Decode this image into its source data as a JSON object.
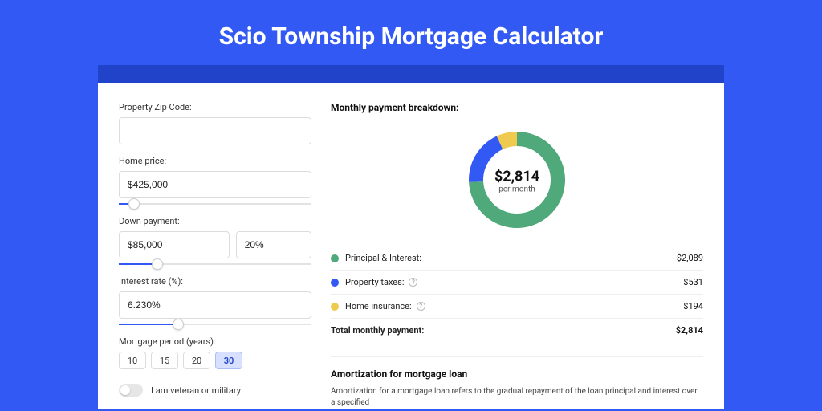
{
  "page": {
    "title": "Scio Township Mortgage Calculator",
    "background_color": "#3359f5",
    "header_band_color": "#2143c9"
  },
  "form": {
    "zip": {
      "label": "Property Zip Code:",
      "value": ""
    },
    "home_price": {
      "label": "Home price:",
      "value": "$425,000",
      "slider_percent": 8
    },
    "down_payment": {
      "label": "Down payment:",
      "amount": "$85,000",
      "percent": "20%",
      "slider_percent": 20
    },
    "interest_rate": {
      "label": "Interest rate (%):",
      "value": "6.230%",
      "slider_percent": 31
    },
    "mortgage_period": {
      "label": "Mortgage period (years):",
      "options": [
        "10",
        "15",
        "20",
        "30"
      ],
      "selected": "30"
    },
    "veteran": {
      "label": "I am veteran or military",
      "checked": false
    }
  },
  "breakdown": {
    "title": "Monthly payment breakdown:",
    "center_amount": "$2,814",
    "center_sub": "per month",
    "donut": {
      "segments": [
        {
          "name": "principal_interest",
          "value": 2089,
          "color": "#4fa97a"
        },
        {
          "name": "property_taxes",
          "value": 531,
          "color": "#3359f5"
        },
        {
          "name": "home_insurance",
          "value": 194,
          "color": "#f0c94f"
        }
      ],
      "radius_outer": 60,
      "radius_inner": 42
    },
    "rows": [
      {
        "label": "Principal & Interest:",
        "value": "$2,089",
        "color": "#4fa97a",
        "info": false
      },
      {
        "label": "Property taxes:",
        "value": "$531",
        "color": "#3359f5",
        "info": true
      },
      {
        "label": "Home insurance:",
        "value": "$194",
        "color": "#f0c94f",
        "info": true
      }
    ],
    "total": {
      "label": "Total monthly payment:",
      "value": "$2,814"
    }
  },
  "amortization": {
    "title": "Amortization for mortgage loan",
    "text": "Amortization for a mortgage loan refers to the gradual repayment of the loan principal and interest over a specified"
  }
}
